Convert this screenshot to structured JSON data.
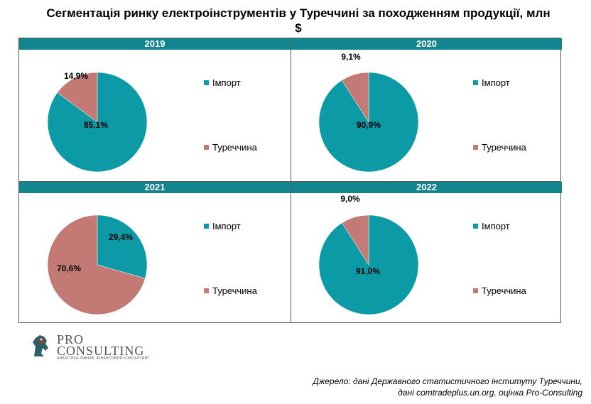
{
  "title": "Сегментація ринку електроінструментів у Туреччині за походженням продукції, млн $",
  "colors": {
    "import": "#0b9aa6",
    "turkey": "#c47a74",
    "band": "#12858f"
  },
  "chart_data": [
    {
      "type": "pie",
      "title": "2019",
      "labels": [
        "Імпорт",
        "Туреччина"
      ],
      "values": [
        85.1,
        14.9
      ],
      "value_labels": [
        "85,1%",
        "14,9%"
      ]
    },
    {
      "type": "pie",
      "title": "2020",
      "labels": [
        "Імпорт",
        "Туреччина"
      ],
      "values": [
        90.9,
        9.1
      ],
      "value_labels": [
        "90,9%",
        "9,1%"
      ]
    },
    {
      "type": "pie",
      "title": "2021",
      "labels": [
        "Імпорт",
        "Туреччина"
      ],
      "values": [
        29.4,
        70.6
      ],
      "value_labels": [
        "29,4%",
        "70,6%"
      ]
    },
    {
      "type": "pie",
      "title": "2022",
      "labels": [
        "Імпорт",
        "Туреччина"
      ],
      "values": [
        91.0,
        9.0
      ],
      "value_labels": [
        "91,0%",
        "9,0%"
      ]
    }
  ],
  "logo": {
    "line1": "PRO",
    "line2": "CONSULTING",
    "tagline": "АНАЛІТИКА РИНКІВ. ФІНАНСОВИЙ КОНСАЛТИНГ"
  },
  "source": {
    "line1": "Джерело: дані Державного статистичного інституту Туреччини,",
    "line2": "дані comtradeplus.un.org, оцінка Pro-Consulting"
  }
}
